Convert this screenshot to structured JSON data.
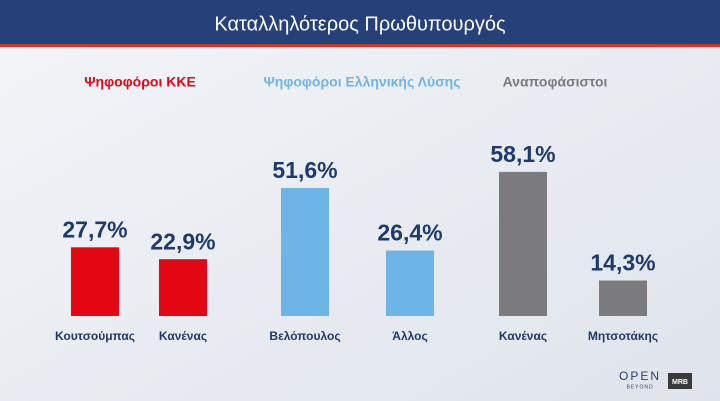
{
  "title": "Καταλληλότερος Πρωθυπουργός",
  "chart_data": [
    {
      "type": "bar",
      "title": "Ψηφοφόροι ΚΚΕ",
      "categories": [
        "Κουτσούμπας",
        "Κανένας"
      ],
      "values": [
        27.7,
        22.9
      ],
      "value_labels": [
        "27,7%",
        "22,9%"
      ],
      "color": "#e30613"
    },
    {
      "type": "bar",
      "title": "Ψηφοφόροι Ελληνικής Λύσης",
      "categories": [
        "Βελόπουλος",
        "Άλλος"
      ],
      "values": [
        51.6,
        26.4
      ],
      "value_labels": [
        "51,6%",
        "26,4%"
      ],
      "color": "#6db5e6"
    },
    {
      "type": "bar",
      "title": "Αναποφάσιστοι",
      "categories": [
        "Κανένας",
        "Μητσοτάκης"
      ],
      "values": [
        58.1,
        14.3
      ],
      "value_labels": [
        "58,1%",
        "14,3%"
      ],
      "color": "#7b7b7d"
    }
  ],
  "footer": {
    "logo": "OPEN",
    "tagline": "BEYOND",
    "brand": "MRB"
  }
}
